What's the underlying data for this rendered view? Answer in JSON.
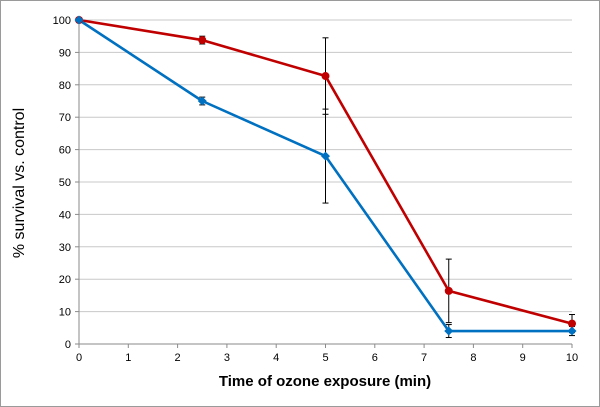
{
  "chart_data": {
    "type": "line",
    "title": "",
    "xlabel": "Time of ozone exposure (min)",
    "ylabel": "% survival vs. control",
    "xlim": [
      0,
      10
    ],
    "ylim": [
      0,
      100
    ],
    "x_ticks": [
      "0",
      "1",
      "2",
      "3",
      "4",
      "5",
      "6",
      "7",
      "8",
      "9",
      "10"
    ],
    "y_ticks": [
      "0",
      "10",
      "20",
      "30",
      "40",
      "50",
      "60",
      "70",
      "80",
      "90",
      "100"
    ],
    "grid": "horizontal",
    "legend": "none",
    "series": [
      {
        "color": "#c00000",
        "marker": "circle",
        "x": [
          0,
          2.5,
          5,
          7.5,
          10
        ],
        "y": [
          100,
          93.8,
          82.7,
          16.4,
          6.3
        ],
        "err": [
          0,
          1.2,
          11.8,
          9.8,
          2.8
        ]
      },
      {
        "color": "#0070c0",
        "marker": "diamond",
        "x": [
          0,
          2.5,
          5,
          7.5,
          10
        ],
        "y": [
          100,
          75,
          58,
          4,
          4
        ],
        "err": [
          0,
          1.2,
          14.5,
          2.0,
          1.4
        ]
      }
    ]
  }
}
